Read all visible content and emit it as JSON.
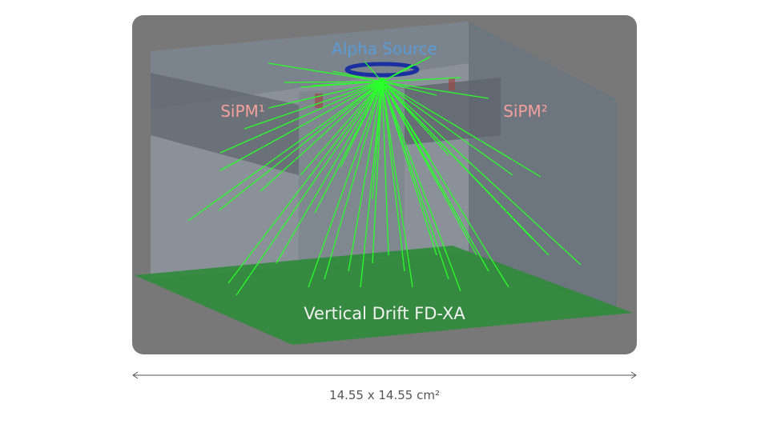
{
  "labels": {
    "source": "Alpha Source",
    "sipm_left": "SiPM¹",
    "sipm_right": "SiPM²",
    "detector": "Vertical Drift FD-XA"
  },
  "dimension": {
    "text": "14.55 x 14.55 cm²"
  },
  "colors": {
    "source_label": "#5b9bd5",
    "sipm_label": "#f4a09c",
    "detector_plane": "#2e8b3a",
    "tracks": "#2aff2a",
    "source_ring": "#1a2fa0",
    "background": "#787878"
  }
}
